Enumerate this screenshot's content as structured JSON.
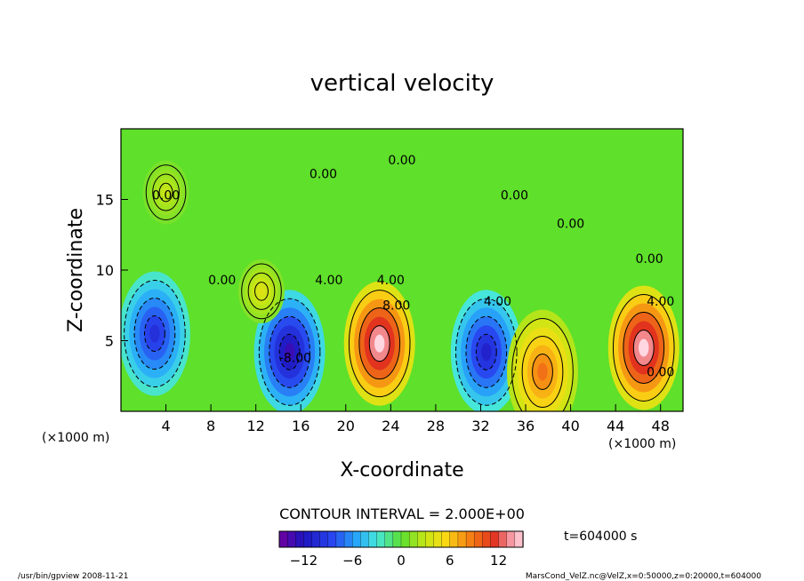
{
  "chart_data": {
    "type": "heatmap",
    "title": "vertical velocity",
    "xlabel": "X-coordinate",
    "ylabel": "Z-coordinate",
    "x_unit_left": "(×1000 m)",
    "x_unit_right": "(×1000 m)",
    "xlim": [
      0,
      50
    ],
    "ylim": [
      0,
      20
    ],
    "x_ticks": [
      4,
      8,
      12,
      16,
      20,
      24,
      28,
      32,
      36,
      40,
      44,
      48
    ],
    "y_ticks": [
      5,
      10,
      15
    ],
    "contour_interval_text": "CONTOUR INTERVAL = 2.000E+00",
    "contour_labels": [
      "0.00",
      "0.00",
      "0.00",
      "0.00",
      "0.00",
      "0.00",
      "0.00",
      "4.00",
      "4.00",
      "8.00",
      "4.00",
      "4.00",
      "-8.00",
      "0.00"
    ],
    "colorbar": {
      "range": [
        -15,
        15
      ],
      "ticks": [
        -12,
        -6,
        0,
        6,
        12
      ],
      "tick_labels": [
        "−12",
        "−6",
        "0",
        "6",
        "12"
      ]
    },
    "time_label": "t=604000  s",
    "cells": [
      {
        "x": 3,
        "z": 5.5,
        "w": -10
      },
      {
        "x": 15,
        "z": 4.2,
        "w": -13
      },
      {
        "x": 23,
        "z": 4.8,
        "w": 15
      },
      {
        "x": 32.5,
        "z": 4.2,
        "w": -11
      },
      {
        "x": 37.5,
        "z": 2.8,
        "w": 9
      },
      {
        "x": 46.5,
        "z": 4.5,
        "w": 15
      },
      {
        "x": 4,
        "z": 15.5,
        "w": 3
      },
      {
        "x": 12.5,
        "z": 8.5,
        "w": 4
      }
    ]
  },
  "footer": {
    "left": "/usr/bin/gpview  2008-11-21",
    "right": "MarsCond_VelZ.nc@VelZ,x=0:50000,z=0:20000,t=604000"
  }
}
